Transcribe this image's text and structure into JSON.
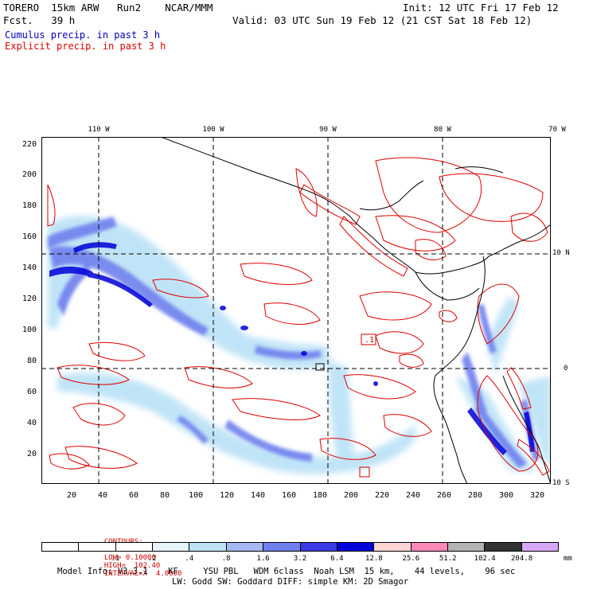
{
  "header": {
    "model": "TORERO  15km ARW   Run2    NCAR/MMM",
    "init": "Init: 12 UTC Fri 17 Feb 12",
    "fcst": "Fcst.   39 h",
    "valid": "Valid: 03 UTC Sun 19 Feb 12 (21 CST Sat 18 Feb 12)",
    "cumulus": "Cumulus precip. in past 3 h",
    "explicit": "Explicit precip. in past 3 h"
  },
  "axes": {
    "lon_labels": [
      "110 W",
      "100 W",
      "90 W",
      "80 W",
      "70 W"
    ],
    "lat_labels": [
      "10 N",
      "0",
      "10 S"
    ],
    "y_ticks": [
      "220",
      "200",
      "180",
      "160",
      "140",
      "120",
      "100",
      "80",
      "60",
      "40",
      "20"
    ],
    "x_ticks": [
      "20",
      "40",
      "60",
      "80",
      "100",
      "120",
      "140",
      "160",
      "180",
      "200",
      "220",
      "240",
      "260",
      "280",
      "300",
      "320"
    ]
  },
  "annotations": {
    "box_label": ".1"
  },
  "contours": {
    "label": "CONTOURS:",
    "units": "UNITS=mm",
    "low": "LOW= 0.10000",
    "high": "HIGH=  102.40",
    "interval": "INTERVAL=X  4.0000"
  },
  "scale": {
    "labels": [
      ".1",
      ".2",
      ".4",
      ".8",
      "1.6",
      "3.2",
      "6.4",
      "12.8",
      "25.6",
      "51.2",
      "102.4",
      "204.8"
    ],
    "colors": [
      "#ffffff",
      "#ffffff",
      "#ffffff",
      "#e6f4fb",
      "#bde3f7",
      "#a6b8f2",
      "#7080ee",
      "#3b3be8",
      "#0000d8",
      "#ffd6d6",
      "#ff88bb",
      "#b3b3b3",
      "#333333",
      "#d6a8f8"
    ],
    "units": "mm"
  },
  "footer": {
    "line1": "Model Info: V3.3.1    KF     YSU PBL   WDM 6class  Noah LSM  15 km,    44 levels,    96 sec",
    "line2": "LW: Godd SW: Goddard DIFF: simple KM: 2D Smagor"
  },
  "colors": {
    "cumulus": "#0000bb",
    "explicit": "#dd0000",
    "contour": "#e00000",
    "precip_light": "#bde3f7",
    "precip_mid": "#7080ee",
    "precip_heavy": "#0000d8"
  }
}
